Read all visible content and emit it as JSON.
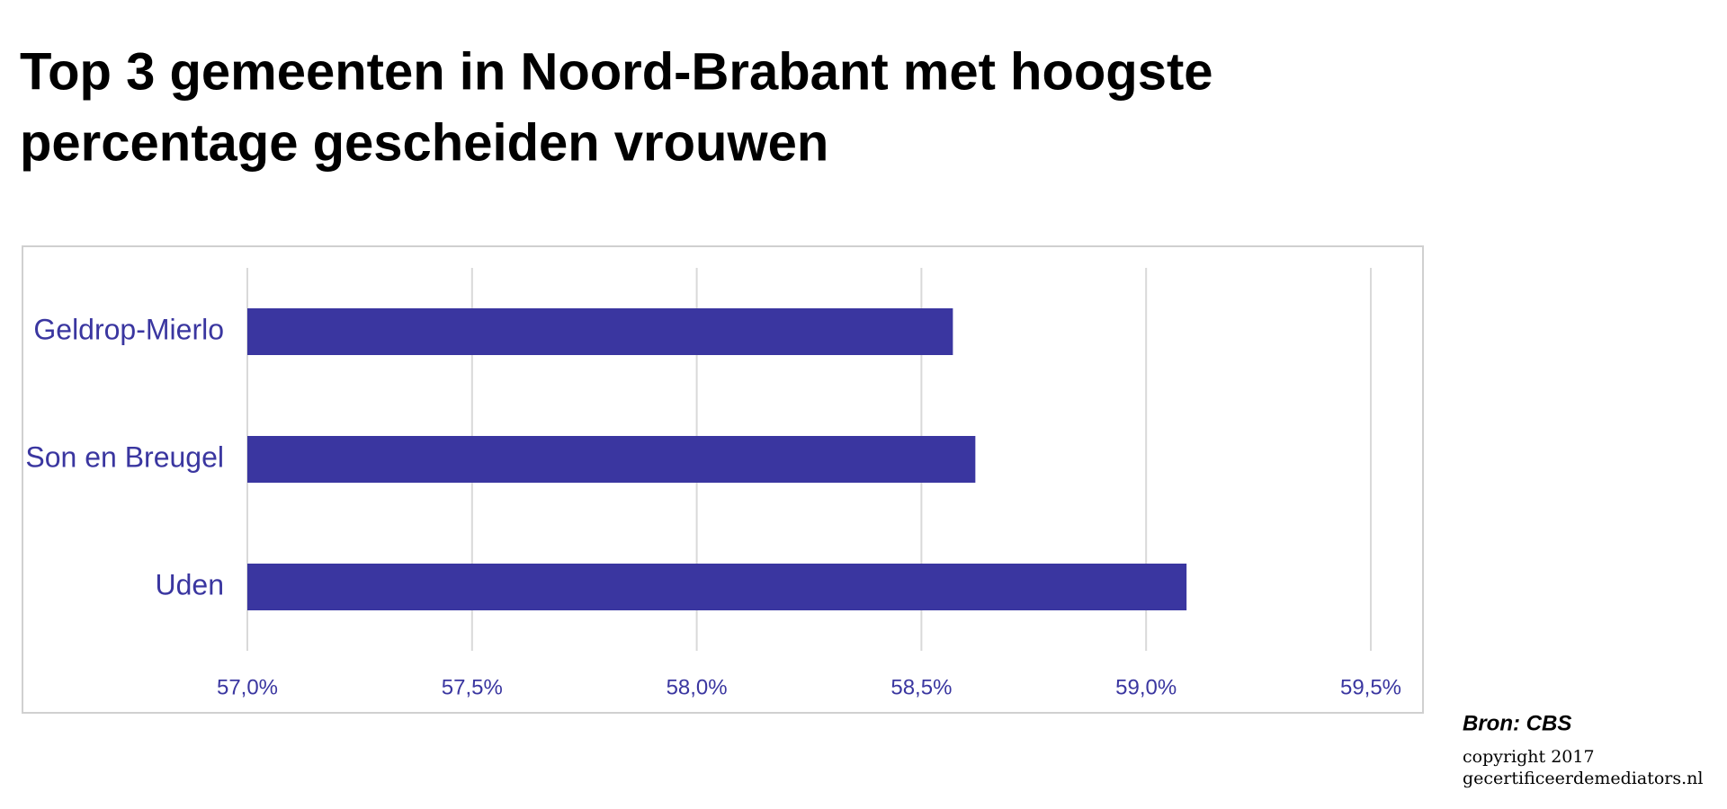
{
  "chart_data": {
    "type": "bar",
    "orientation": "horizontal",
    "title": [
      "Top 3 gemeenten in Noord-Brabant met hoogste",
      "percentage gescheiden vrouwen"
    ],
    "categories": [
      "Geldrop-Mierlo",
      "Son en Breugel",
      "Uden"
    ],
    "values": [
      58.57,
      58.62,
      59.09
    ],
    "color": "#3a36a0",
    "xlim": [
      57,
      59.5
    ],
    "xticks": [
      {
        "value": 57,
        "label": "57,0%"
      },
      {
        "value": 57.5,
        "label": "57,5%"
      },
      {
        "value": 58,
        "label": "58,0%"
      },
      {
        "value": 58.5,
        "label": "58,5%"
      },
      {
        "value": 59,
        "label": "59,0%"
      },
      {
        "value": 59.5,
        "label": "59,5%"
      }
    ],
    "grid": true,
    "source": "Bron: CBS",
    "copyright": [
      "copyright 2017",
      "gecertificeerdemediators.nl"
    ]
  }
}
